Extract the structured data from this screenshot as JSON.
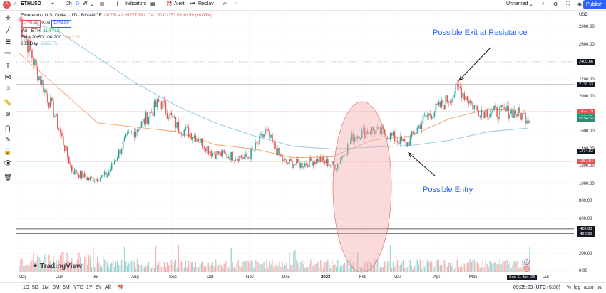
{
  "topbar": {
    "avatar_label": "A",
    "symbol": "ETHUSD",
    "add_label": "+",
    "interval_2h": "2h",
    "interval_D": "D",
    "interval_W": "W",
    "indicators_label": "Indicators",
    "alert_label": "Alert",
    "replay_label": "Replay",
    "layout_name": "Unnamed",
    "publish_label": "Publish"
  },
  "legend": {
    "title": "Ethereum / U.S. Dollar · 1D · BINANCE",
    "ohlc": "O1751.41 H1777.78 L1741.50 C1753.53 +0.59 (+0.03%)",
    "sell_price": "1743.89",
    "spread": "0.08",
    "buy_price": "1743.89",
    "vol_label": "Vol · ETH",
    "vol_value": "11.671K",
    "ema_label": "EMA 20/50/100/200",
    "ema_value": "1842.11",
    "day_label": "200 Day",
    "day_value": "1625.75"
  },
  "annotations": {
    "exit": "Possible Exit at Resistance",
    "entry": "Possible Entry"
  },
  "price_scale": {
    "currency": "USD",
    "ticks": [
      "2800.00",
      "2600.00",
      "2400.00",
      "2200.00",
      "2000.00",
      "1800.00",
      "1600.00",
      "1400.00",
      "1200.00",
      "1000.00",
      "800.00",
      "600.00",
      "400.00",
      "200.00",
      "0.00"
    ],
    "tags": [
      {
        "label": "2400.66",
        "color": "#131722"
      },
      {
        "label": "2138.33",
        "color": "#131722"
      },
      {
        "label": "1827.79",
        "color": "#e05555"
      },
      {
        "label": "1743.89",
        "color": "#2e8b73"
      },
      {
        "label": "18:54:56",
        "color": "#2e8b73"
      },
      {
        "label": "1374.83",
        "color": "#131722"
      },
      {
        "label": "1257.84",
        "color": "#e05555"
      },
      {
        "label": "482.83",
        "color": "#131722"
      },
      {
        "label": "426.90",
        "color": "#131722"
      }
    ]
  },
  "time_scale": {
    "labels": [
      "May",
      "Jun",
      "Jul",
      "Aug",
      "Sep",
      "Oct",
      "Nov",
      "Dec",
      "2023",
      "Feb",
      "Mar",
      "Apr",
      "May",
      "Jun",
      "Jul"
    ],
    "cursor_date": "Sun 11 Jun '23"
  },
  "bottombar": {
    "ranges": [
      "1D",
      "5D",
      "1M",
      "3M",
      "6M",
      "YTD",
      "1Y",
      "5Y",
      "All"
    ],
    "clock": "09:35:23 (UTC+5:30)",
    "pct": "%",
    "log": "log",
    "auto": "auto"
  },
  "watermark": "TradingView",
  "chart_data": {
    "type": "candlestick",
    "title": "Ethereum / U.S. Dollar · 1D · BINANCE",
    "x_labels": [
      "May",
      "Jun",
      "Jul",
      "Aug",
      "Sep",
      "Oct",
      "Nov",
      "Dec",
      "2023",
      "Feb",
      "Mar",
      "Apr",
      "May",
      "Jun",
      "Jul"
    ],
    "ylim": [
      0,
      2900
    ],
    "horizontal_levels": [
      2400.66,
      2138.33,
      1827.79,
      1374.83,
      1257.84,
      482.83,
      426.9
    ],
    "close_path": [
      [
        "May",
        2900
      ],
      [
        "May",
        2300
      ],
      [
        "Jun",
        1800
      ],
      [
        "Jun",
        1150
      ],
      [
        "Jun",
        1050
      ],
      [
        "Jul",
        1100
      ],
      [
        "Jul",
        1500
      ],
      [
        "Aug",
        1700
      ],
      [
        "Aug",
        1950
      ],
      [
        "Aug",
        1650
      ],
      [
        "Sep",
        1550
      ],
      [
        "Sep",
        1350
      ],
      [
        "Oct",
        1320
      ],
      [
        "Oct",
        1300
      ],
      [
        "Nov",
        1600
      ],
      [
        "Nov",
        1250
      ],
      [
        "Dec",
        1220
      ],
      [
        "Dec",
        1280
      ],
      [
        "2023",
        1200
      ],
      [
        "2023",
        1550
      ],
      [
        "Feb",
        1620
      ],
      [
        "Feb",
        1560
      ],
      [
        "Mar",
        1450
      ],
      [
        "Mar",
        1750
      ],
      [
        "Apr",
        1900
      ],
      [
        "Apr",
        2100
      ],
      [
        "May",
        1850
      ],
      [
        "May",
        1820
      ],
      [
        "Jun",
        1830
      ],
      [
        "Jun",
        1753
      ]
    ],
    "ema_path": [
      [
        "May",
        2500
      ],
      [
        "Jun",
        2100
      ],
      [
        "Jul",
        1700
      ],
      [
        "Aug",
        1650
      ],
      [
        "Sep",
        1600
      ],
      [
        "Oct",
        1450
      ],
      [
        "Nov",
        1400
      ],
      [
        "Dec",
        1300
      ],
      [
        "2023",
        1310
      ],
      [
        "Feb",
        1500
      ],
      [
        "Mar",
        1550
      ],
      [
        "Apr",
        1750
      ],
      [
        "May",
        1860
      ],
      [
        "Jun",
        1850
      ]
    ],
    "sma200_path": [
      [
        "May",
        2900
      ],
      [
        "Jun",
        2750
      ],
      [
        "Jul",
        2450
      ],
      [
        "Aug",
        2150
      ],
      [
        "Sep",
        1900
      ],
      [
        "Oct",
        1700
      ],
      [
        "Nov",
        1550
      ],
      [
        "Dec",
        1430
      ],
      [
        "2023",
        1400
      ],
      [
        "Feb",
        1420
      ],
      [
        "Mar",
        1440
      ],
      [
        "Apr",
        1500
      ],
      [
        "May",
        1600
      ],
      [
        "Jun",
        1640
      ]
    ]
  },
  "colors": {
    "up": "#26a69a",
    "down": "#ef5350",
    "ema": "#f0a06a",
    "sma": "#8ec5dc",
    "ellipse": "#f4aeb0",
    "annotation": "#2962ff"
  }
}
